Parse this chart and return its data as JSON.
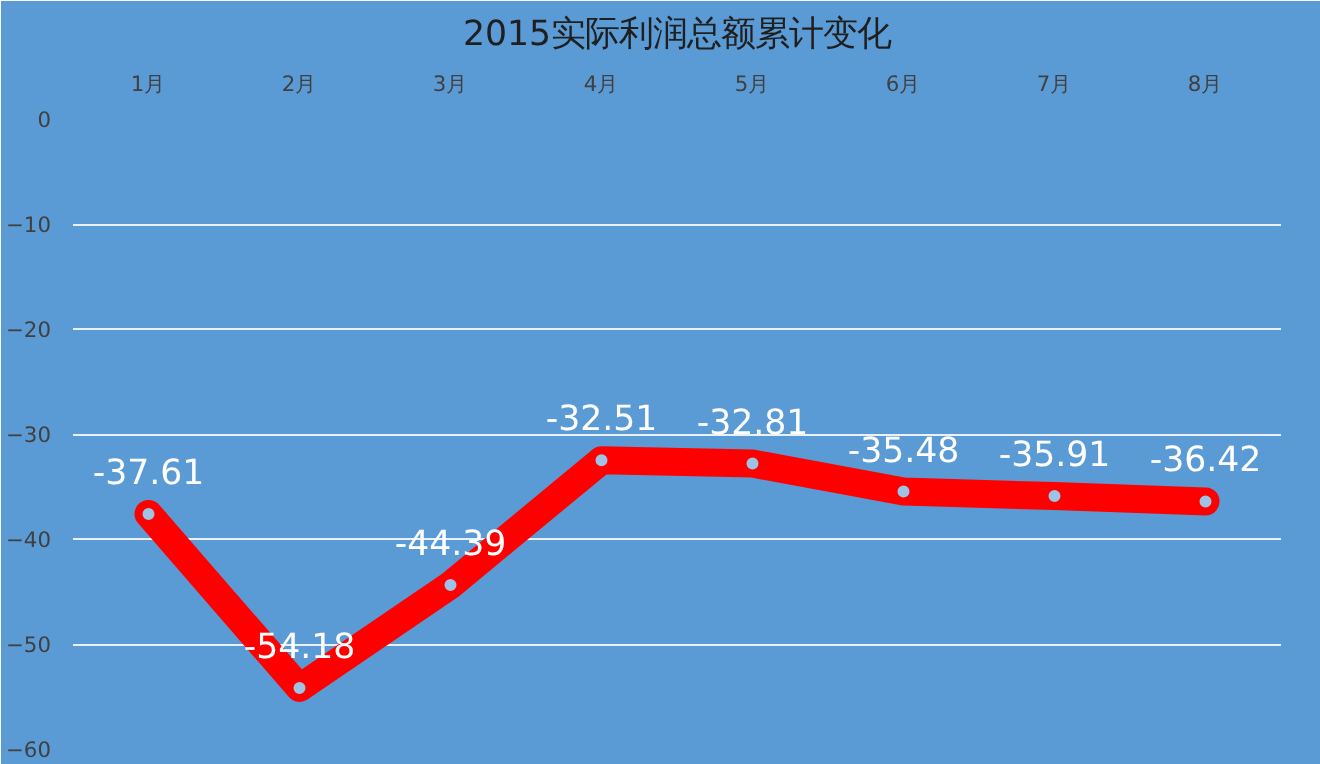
{
  "chart_data": {
    "type": "line",
    "title": "2015实际利润总额累计变化",
    "categories": [
      "1月",
      "2月",
      "3月",
      "4月",
      "5月",
      "6月",
      "7月",
      "8月"
    ],
    "series": [
      {
        "color": "#ff0000",
        "values": [
          -37.61,
          -54.18,
          -44.39,
          -32.51,
          -32.81,
          -35.48,
          -35.91,
          -36.42
        ]
      }
    ],
    "ylim": [
      -60,
      0
    ],
    "yticks": [
      0,
      -10,
      -20,
      -30,
      -40,
      -50,
      -60
    ],
    "grid": "y",
    "marker": "circle",
    "line_style": "solid",
    "data_labels": true
  }
}
